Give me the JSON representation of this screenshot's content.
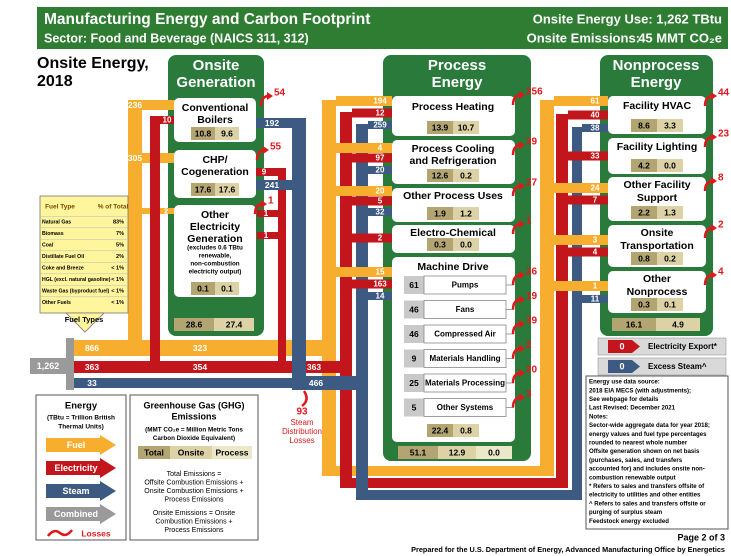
{
  "header": {
    "title": "Manufacturing Energy and Carbon Footprint",
    "sector": "Sector:  Food and Beverage (NAICS 311, 312)",
    "energy_use": "Onsite Energy Use: 1,262 TBtu",
    "emissions_label": "Onsite Emissions:",
    "emissions_value": "45 MMT CO₂e"
  },
  "subtitle": [
    "Onsite Energy,",
    "2018"
  ],
  "fuel_table": {
    "label": "Fuel Types",
    "header": [
      "Fuel Type",
      "% of Total"
    ],
    "rows": [
      [
        "Natural Gas",
        "83%"
      ],
      [
        "Biomass",
        "7%"
      ],
      [
        "Coal",
        "5%"
      ],
      [
        "Distillate Fuel Oil",
        "2%"
      ],
      [
        "Coke and Breeze",
        "< 1%"
      ],
      [
        "HGL (excl. natural gasoline)",
        "< 1%"
      ],
      [
        "Waste Gas (byproduct fuel)",
        "< 1%"
      ],
      [
        "Other Fuels",
        "< 1%"
      ]
    ]
  },
  "total_input": "1,262",
  "onsite_generation": {
    "title": [
      "Onsite",
      "Generation"
    ],
    "units": [
      {
        "name": [
          "Conventional",
          "Boilers"
        ],
        "values": [
          "10.8",
          "9.6"
        ],
        "loss": "54"
      },
      {
        "name": [
          "CHP/",
          "Cogeneration"
        ],
        "values": [
          "17.6",
          "17.6"
        ],
        "loss": "55"
      },
      {
        "name": [
          "Other",
          "Electricity",
          "Generation"
        ],
        "note": [
          "(excludes 0.6 TBtu",
          "renewable,",
          "non-combustion",
          "electricity output)"
        ],
        "values": [
          "0.1",
          "0.1"
        ],
        "loss": "1"
      }
    ],
    "totals": [
      "28.6",
      "27.4"
    ]
  },
  "flows": {
    "fuel_total": "866",
    "elec_total": "363",
    "steam_total": "33",
    "fuel_boilers": "236",
    "elec_boilers": "10",
    "steam_boilers": "192",
    "fuel_chp": "305",
    "elec_chp": "9",
    "steam_chp": "241",
    "fuel_other_gen": "2",
    "elec_other_gen_1": "1",
    "elec_other_gen_2": "1",
    "fuel_to_end_use": "323",
    "elec_to_end_use": "354",
    "elec_process_nonprocess": "363",
    "steam_process_nonprocess": "466"
  },
  "steam_losses": {
    "value": "93",
    "label": [
      "Steam",
      "Distribution",
      "Losses"
    ]
  },
  "process_energy": {
    "title": [
      "Process",
      "Energy"
    ],
    "end_uses": [
      {
        "name": [
          "Process Heating"
        ],
        "inputs": {
          "fuel": "194",
          "electricity": "12",
          "steam": "259"
        },
        "values": [
          "13.9",
          "10.7"
        ],
        "loss": "256"
      },
      {
        "name": [
          "Process Cooling",
          "and Refrigeration"
        ],
        "inputs": {
          "fuel": "4",
          "electricity": "97",
          "steam": "20"
        },
        "values": [
          "12.6",
          "0.2"
        ],
        "loss": "39"
      },
      {
        "name": [
          "Other Process Uses"
        ],
        "inputs": {
          "fuel": "20",
          "electricity": "5",
          "steam": "32"
        },
        "values": [
          "1.9",
          "1.2"
        ],
        "loss": "27"
      },
      {
        "name": [
          "Electro-Chemical"
        ],
        "inputs": {
          "electricity": "2"
        },
        "values": [
          "0.3",
          "0.0"
        ],
        "loss": "1"
      }
    ],
    "machine_drive": {
      "name": "Machine Drive",
      "inputs": {
        "fuel": "15",
        "electricity": "163",
        "steam": "14"
      },
      "systems": [
        {
          "name": "Pumps",
          "value": "61",
          "loss": "26"
        },
        {
          "name": "Fans",
          "value": "46",
          "loss": "19"
        },
        {
          "name": "Compressed Air",
          "value": "46",
          "loss": "39"
        },
        {
          "name": "Materials Handling",
          "value": "9",
          "loss": "2"
        },
        {
          "name": "Materials Processing",
          "value": "25",
          "loss": "20"
        },
        {
          "name": "Other Systems",
          "value": "5",
          "loss": "3"
        }
      ],
      "values": [
        "22.4",
        "0.8"
      ]
    },
    "totals": [
      "51.1",
      "12.9",
      "0.0"
    ]
  },
  "nonprocess_energy": {
    "title": [
      "Nonprocess",
      "Energy"
    ],
    "end_uses": [
      {
        "name": [
          "Facility HVAC"
        ],
        "inputs": {
          "fuel": "61",
          "electricity": "40",
          "steam": "38"
        },
        "values": [
          "8.6",
          "3.3"
        ],
        "loss": "44"
      },
      {
        "name": [
          "Facility Lighting"
        ],
        "inputs": {
          "electricity": "33"
        },
        "values": [
          "4.2",
          "0.0"
        ],
        "loss": "23"
      },
      {
        "name": [
          "Other Facility",
          "Support"
        ],
        "inputs": {
          "fuel": "24",
          "electricity": "7"
        },
        "values": [
          "2.2",
          "1.3"
        ],
        "loss": "8"
      },
      {
        "name": [
          "Onsite",
          "Transportation"
        ],
        "inputs": {
          "fuel": "3",
          "electricity": "4"
        },
        "values": [
          "0.8",
          "0.2"
        ],
        "loss": "2"
      },
      {
        "name": [
          "Other",
          "Nonprocess"
        ],
        "inputs": {
          "fuel": "1",
          "steam": "11"
        },
        "values": [
          "0.3",
          "0.1"
        ],
        "loss": "4"
      }
    ],
    "totals": [
      "16.1",
      "4.9"
    ]
  },
  "exports": [
    {
      "value": "0",
      "label": "Electricity Export*"
    },
    {
      "value": "0",
      "label": "Excess Steam^"
    }
  ],
  "legend": {
    "energy": {
      "title": "Energy",
      "units": [
        "(TBtu = Trillion British",
        "Thermal Units)"
      ],
      "items": [
        "Fuel",
        "Electricity",
        "Steam",
        "Combined",
        "Losses"
      ]
    },
    "ghg": {
      "title": [
        "Greenhouse Gas (GHG)",
        "Emissions"
      ],
      "units": [
        "(MMT CO₂e = Million Metric Tons",
        "Carbon Dioxide Equivalent)"
      ],
      "columns": [
        "Total",
        "Onsite",
        "Process"
      ],
      "total_def": [
        "Total Emissions =",
        "Offsite Combustion Emissions +",
        "Onsite Combustion Emissions +",
        "Process Emissions"
      ],
      "onsite_def": [
        "Onsite Emissions = Onsite",
        "Combustion Emissions +",
        "Process Emissions"
      ]
    }
  },
  "notes": [
    "Energy use data source:",
    "2018 EIA MECS (with adjustments);",
    "See webpage for details",
    "Last Revised: December 2021",
    "Notes:",
    "Sector-wide aggregate data for year 2018;",
    "energy values and fuel type percentages",
    "rounded to nearest whole number",
    "Offsite generation shown on net basis",
    "(purchases, sales, and transfers",
    "accounted for) and includes onsite non-",
    "combustion renewable output",
    "* Refers to sales and transfers offsite of",
    "electricity to utilities and other entities",
    "^ Refers to sales and transfers offsite or",
    "purging of surplus steam",
    "Feedstock energy excluded"
  ],
  "footer": {
    "page": "Page 2 of 3",
    "prepared": "Prepared for the U.S. Department of Energy, Advanced Manufacturing Office by Energetics"
  }
}
